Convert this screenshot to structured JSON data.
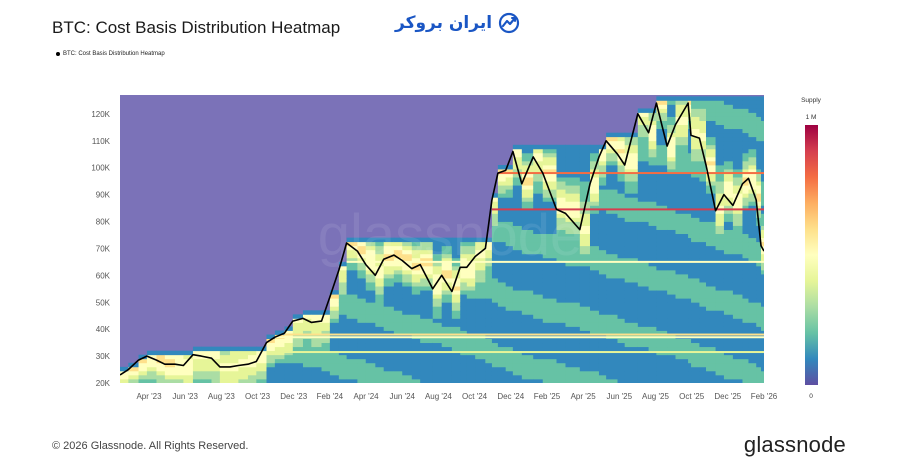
{
  "header": {
    "title": "BTC: Cost Basis Distribution Heatmap",
    "brand_text": "ایران بروکر"
  },
  "footer": {
    "copyright": "© 2026 Glassnode. All Rights Reserved.",
    "wordmark": "glassnode"
  },
  "watermark": "glassnode",
  "colors": {
    "background_band": "#7b72b8",
    "price_line": "#000000",
    "brand": "#1a56c4"
  },
  "chart_data": {
    "type": "heatmap",
    "title": "BTC: Cost Basis Distribution Heatmap",
    "legend": [
      {
        "name": "BTC: Cost Basis Distribution Heatmap",
        "placement": "top-left"
      }
    ],
    "x_ticks": [
      "Apr '23",
      "Jun '23",
      "Aug '23",
      "Oct '23",
      "Dec '23",
      "Feb '24",
      "Apr '24",
      "Jun '24",
      "Aug '24",
      "Oct '24",
      "Dec '24",
      "Feb '25",
      "Apr '25",
      "Jun '25",
      "Aug '25",
      "Oct '25",
      "Dec '25",
      "Feb '26"
    ],
    "y_ticks": [
      "20K",
      "30K",
      "40K",
      "50K",
      "60K",
      "70K",
      "80K",
      "90K",
      "100K",
      "110K",
      "120K"
    ],
    "ylim": [
      20000,
      127000
    ],
    "x_range": [
      "2023-03-01",
      "2026-02-10"
    ],
    "colorbar": {
      "label": "Supply",
      "max_label": "1 M",
      "min_label": "0",
      "colors": [
        "#5e4fa2",
        "#3288bd",
        "#66c2a5",
        "#abdda4",
        "#e6f598",
        "#ffffbf",
        "#fee08b",
        "#fdae61",
        "#f46d43",
        "#d53e4f",
        "#9e0142"
      ]
    },
    "price_series": {
      "name": "BTC price",
      "x": [
        "2023-03-01",
        "2023-03-15",
        "2023-04-01",
        "2023-04-15",
        "2023-05-01",
        "2023-05-15",
        "2023-06-01",
        "2023-06-15",
        "2023-07-01",
        "2023-07-15",
        "2023-08-01",
        "2023-08-15",
        "2023-09-01",
        "2023-09-15",
        "2023-10-01",
        "2023-10-15",
        "2023-11-01",
        "2023-11-15",
        "2023-12-01",
        "2023-12-15",
        "2024-01-01",
        "2024-01-15",
        "2024-02-01",
        "2024-02-15",
        "2024-03-01",
        "2024-03-14",
        "2024-04-01",
        "2024-04-15",
        "2024-05-01",
        "2024-05-15",
        "2024-06-01",
        "2024-06-15",
        "2024-07-01",
        "2024-07-15",
        "2024-08-05",
        "2024-08-20",
        "2024-09-06",
        "2024-09-20",
        "2024-10-01",
        "2024-10-15",
        "2024-11-01",
        "2024-11-12",
        "2024-11-22",
        "2024-12-05",
        "2024-12-17",
        "2025-01-01",
        "2025-01-20",
        "2025-02-05",
        "2025-02-28",
        "2025-03-15",
        "2025-04-08",
        "2025-04-25",
        "2025-05-10",
        "2025-05-22",
        "2025-06-10",
        "2025-06-22",
        "2025-07-14",
        "2025-08-01",
        "2025-08-14",
        "2025-09-01",
        "2025-09-15",
        "2025-10-06",
        "2025-10-11",
        "2025-10-25",
        "2025-11-05",
        "2025-11-21",
        "2025-12-05",
        "2025-12-20",
        "2026-01-05",
        "2026-01-15",
        "2026-01-28",
        "2026-02-05",
        "2026-02-10"
      ],
      "y": [
        23000,
        25000,
        28500,
        30000,
        28500,
        27000,
        27000,
        26500,
        30500,
        30000,
        29200,
        26000,
        26000,
        26500,
        27000,
        28000,
        35000,
        37000,
        38500,
        43000,
        44000,
        42500,
        43000,
        52000,
        62000,
        72000,
        69000,
        64000,
        60000,
        66000,
        67500,
        65500,
        62500,
        64000,
        55000,
        60000,
        54000,
        63000,
        63000,
        67000,
        70000,
        88000,
        98000,
        99000,
        106000,
        94000,
        104000,
        98000,
        84500,
        83000,
        77000,
        94000,
        104000,
        110000,
        105000,
        101000,
        120000,
        113000,
        124000,
        108000,
        116000,
        124000,
        112000,
        111000,
        101000,
        84000,
        90000,
        86000,
        94000,
        96000,
        88000,
        71000,
        69000
      ]
    }
  }
}
